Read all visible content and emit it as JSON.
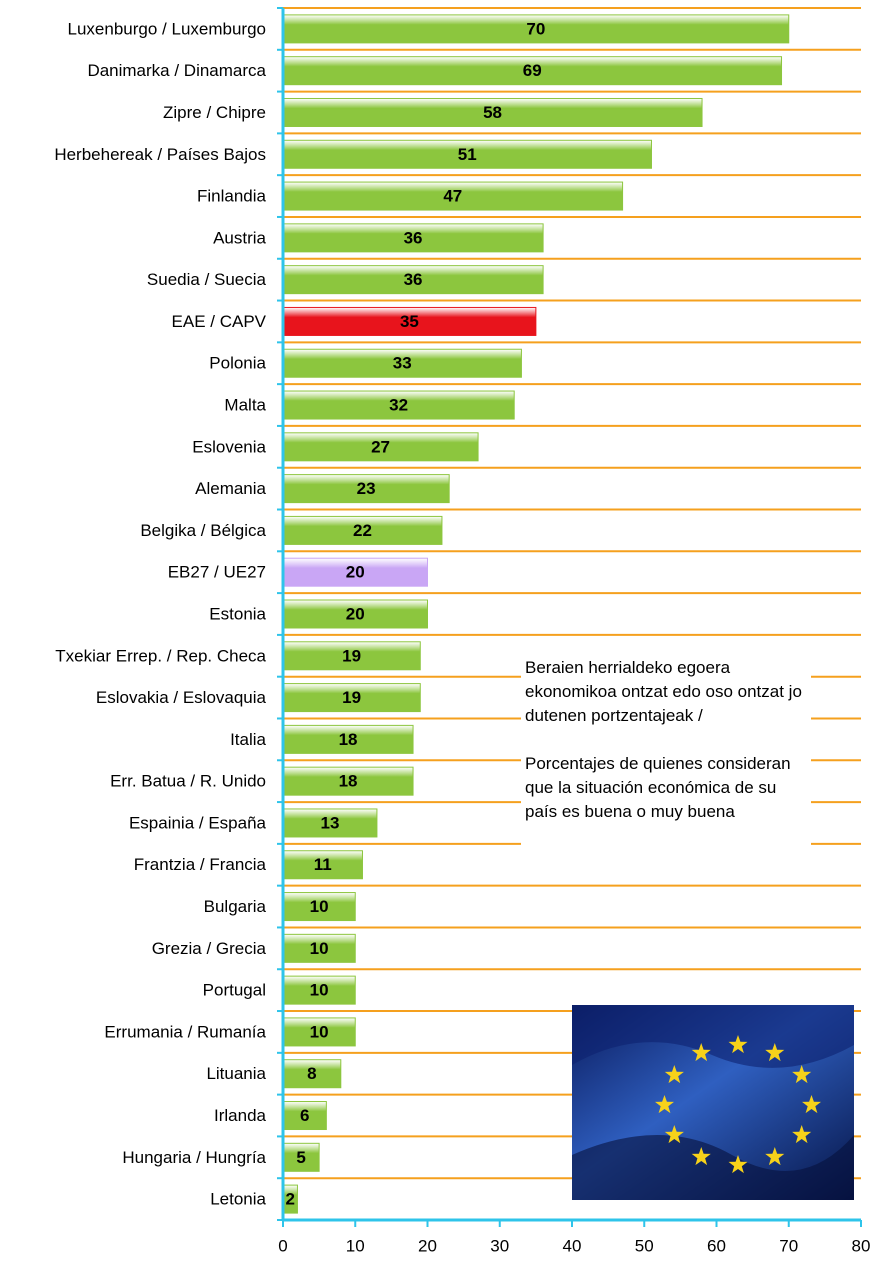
{
  "chart_data": {
    "type": "hbar",
    "categories": [
      "Luxenburgo / Luxemburgo",
      "Danimarka / Dinamarca",
      "Zipre / Chipre",
      "Herbehereak / Países Bajos",
      "Finlandia",
      "Austria",
      "Suedia / Suecia",
      "EAE / CAPV",
      "Polonia",
      "Malta",
      "Eslovenia",
      "Alemania",
      "Belgika / Bélgica",
      "EB27 / UE27",
      "Estonia",
      "Txekiar Errep. / Rep. Checa",
      "Eslovakia / Eslovaquia",
      "Italia",
      "Err. Batua / R. Unido",
      "Espainia / España",
      "Frantzia / Francia",
      "Bulgaria",
      "Grezia / Grecia",
      "Portugal",
      "Errumania / Rumanía",
      "Lituania",
      "Irlanda",
      "Hungaria / Hungría",
      "Letonia"
    ],
    "values": [
      70,
      69,
      58,
      51,
      47,
      36,
      36,
      35,
      33,
      32,
      27,
      23,
      22,
      20,
      20,
      19,
      19,
      18,
      18,
      13,
      11,
      10,
      10,
      10,
      10,
      8,
      6,
      5,
      2
    ],
    "colors": [
      "#8cc63e",
      "#8cc63e",
      "#8cc63e",
      "#8cc63e",
      "#8cc63e",
      "#8cc63e",
      "#8cc63e",
      "#e8141c",
      "#8cc63e",
      "#8cc63e",
      "#8cc63e",
      "#8cc63e",
      "#8cc63e",
      "#c9a6f5",
      "#8cc63e",
      "#8cc63e",
      "#8cc63e",
      "#8cc63e",
      "#8cc63e",
      "#8cc63e",
      "#8cc63e",
      "#8cc63e",
      "#8cc63e",
      "#8cc63e",
      "#8cc63e",
      "#8cc63e",
      "#8cc63e",
      "#8cc63e",
      "#8cc63e"
    ],
    "xlim": [
      0,
      80
    ],
    "xticks": [
      0,
      10,
      20,
      30,
      40,
      50,
      60,
      70,
      80
    ],
    "grid": true,
    "grid_color": "#f5a01e",
    "axis_color": "#2ec4ea",
    "annotation": [
      "Beraien herrialdeko egoera ekonomikoa ontzat edo oso ontzat jo dutenen portzentajeak /",
      "Porcentajes de quienes consideran que la situación económica de su país es buena o muy buena"
    ]
  }
}
